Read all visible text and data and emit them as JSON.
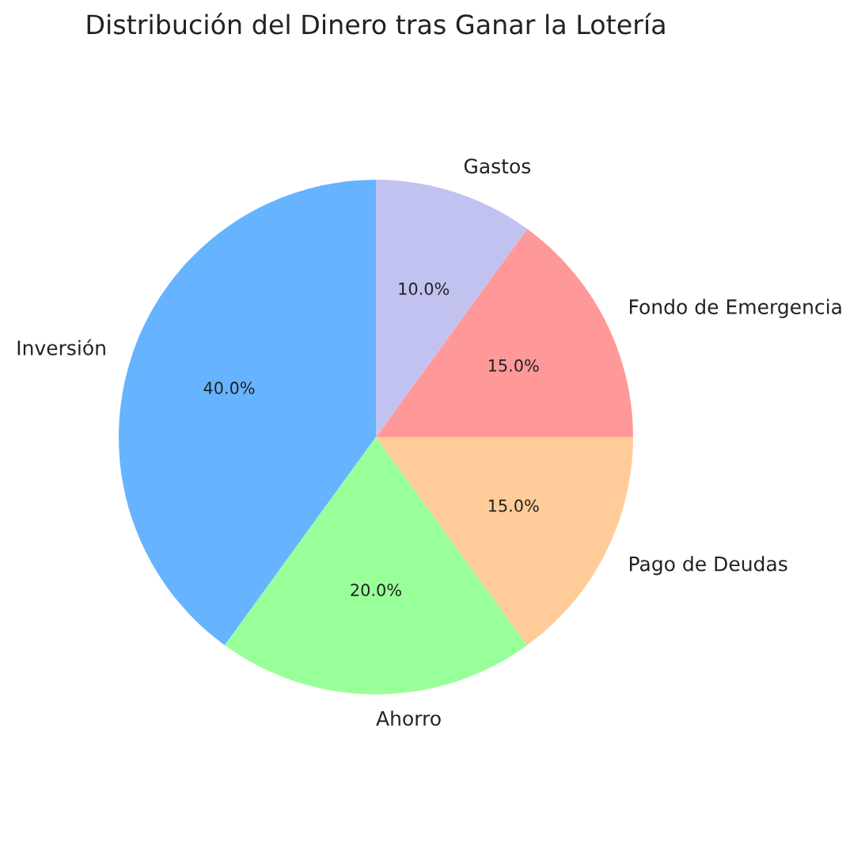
{
  "chart_data": {
    "type": "pie",
    "title": "Distribución del Dinero tras Ganar la Lotería",
    "categories": [
      "Inversión",
      "Ahorro",
      "Pago de Deudas",
      "Fondo de Emergencia",
      "Gastos"
    ],
    "values": [
      40,
      20,
      15,
      15,
      10
    ],
    "colors": [
      "#66b3ff",
      "#99ff99",
      "#ffcc99",
      "#ff9999",
      "#c2c2f0"
    ],
    "value_labels": [
      "40.0%",
      "20.0%",
      "15.0%",
      "15.0%",
      "10.0%"
    ]
  }
}
